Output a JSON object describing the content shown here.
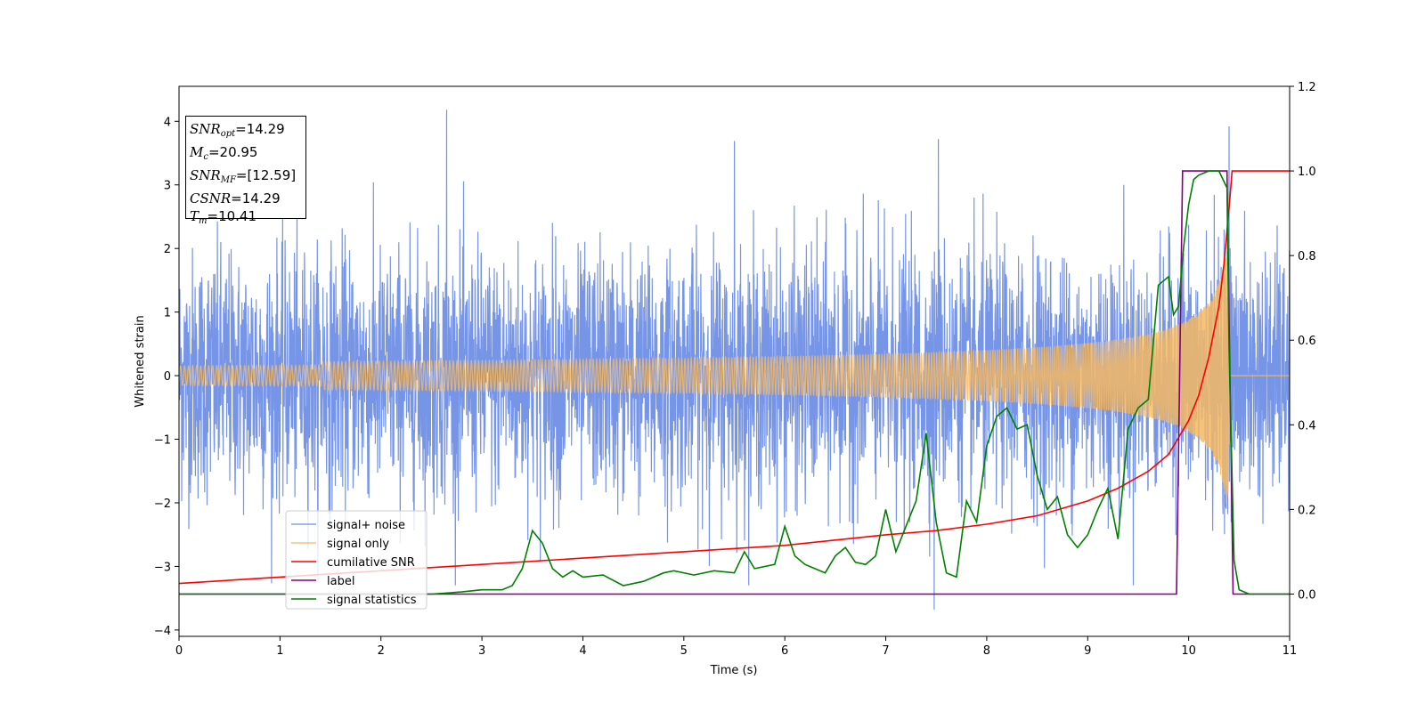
{
  "chart_data": {
    "type": "line",
    "xlabel": "Time (s)",
    "ylabel": "Whitened strain",
    "xlim": [
      0,
      11
    ],
    "ylim": [
      -4.1,
      4.55
    ],
    "y2lim": [
      -0.1,
      1.2
    ],
    "x_ticks": [
      "0",
      "1",
      "2",
      "3",
      "4",
      "5",
      "6",
      "7",
      "8",
      "9",
      "10",
      "11"
    ],
    "y_ticks": [
      "−4",
      "−3",
      "−2",
      "−1",
      "0",
      "1",
      "2",
      "3",
      "4"
    ],
    "y2_ticks": [
      "0.0",
      "0.2",
      "0.4",
      "0.6",
      "0.8",
      "1.0",
      "1.2"
    ],
    "grid": false,
    "legend_position": "lower-left",
    "info_box": {
      "snr_opt_sym": "SNR",
      "snr_opt_sub": "opt",
      "snr_opt_val": "=14.29",
      "mc_sym": "M",
      "mc_sub": "c",
      "mc_val": "=20.95",
      "snr_mf_sym": "SNR",
      "snr_mf_sub": "MF",
      "snr_mf_val": "=[12.59]",
      "csnr_sym": "CSNR",
      "csnr_val": "=14.29",
      "tm_sym": "T",
      "tm_sub": "m",
      "tm_val": "=10.41"
    },
    "series": [
      {
        "name": "signal+ noise",
        "color": "#6f8fe6",
        "axis": "left",
        "kind": "noise",
        "notable_spikes": [
          [
            2.65,
            4.18
          ],
          [
            10.4,
            3.92
          ],
          [
            7.52,
            3.72
          ],
          [
            7.48,
            -3.68
          ],
          [
            5.5,
            3.69
          ]
        ]
      },
      {
        "name": "signal only",
        "color": "#f5b862",
        "axis": "left",
        "kind": "chirp",
        "merger_time": 10.41,
        "peak_amplitude": 2.6
      },
      {
        "name": "cumilative SNR",
        "color": "#ff0000",
        "axis": "right",
        "x": [
          0,
          1,
          2,
          3,
          4,
          5,
          6,
          7,
          7.5,
          8,
          8.5,
          9,
          9.3,
          9.6,
          9.8,
          10.0,
          10.1,
          10.2,
          10.3,
          10.35,
          10.38,
          10.41,
          10.43,
          11
        ],
        "y": [
          0.025,
          0.04,
          0.055,
          0.07,
          0.085,
          0.1,
          0.115,
          0.14,
          0.15,
          0.165,
          0.185,
          0.22,
          0.25,
          0.29,
          0.33,
          0.41,
          0.47,
          0.56,
          0.68,
          0.78,
          0.86,
          0.94,
          1.0,
          1.0
        ]
      },
      {
        "name": "label",
        "color": "#800080",
        "axis": "right",
        "x": [
          0,
          9.88,
          9.94,
          10.38,
          10.44,
          11
        ],
        "y": [
          0.0,
          0.0,
          1.0,
          1.0,
          0.0,
          0.0
        ]
      },
      {
        "name": "signal statistics",
        "color": "#008000",
        "axis": "right",
        "x": [
          0,
          1,
          2,
          2.5,
          2.8,
          3.0,
          3.2,
          3.3,
          3.4,
          3.5,
          3.6,
          3.7,
          3.8,
          3.9,
          4.0,
          4.2,
          4.4,
          4.6,
          4.8,
          4.9,
          5.1,
          5.3,
          5.5,
          5.6,
          5.7,
          5.9,
          6.0,
          6.1,
          6.2,
          6.4,
          6.5,
          6.6,
          6.7,
          6.8,
          6.9,
          7.0,
          7.1,
          7.2,
          7.3,
          7.4,
          7.5,
          7.6,
          7.7,
          7.8,
          7.9,
          8.0,
          8.1,
          8.2,
          8.3,
          8.4,
          8.5,
          8.6,
          8.7,
          8.8,
          8.9,
          9.0,
          9.1,
          9.2,
          9.3,
          9.4,
          9.5,
          9.6,
          9.7,
          9.8,
          9.85,
          9.9,
          9.95,
          10.0,
          10.05,
          10.1,
          10.2,
          10.3,
          10.38,
          10.4,
          10.45,
          10.5,
          10.6,
          11
        ],
        "y": [
          0.0,
          0.0,
          0.0,
          0.0,
          0.005,
          0.01,
          0.01,
          0.02,
          0.06,
          0.15,
          0.12,
          0.06,
          0.04,
          0.055,
          0.04,
          0.045,
          0.02,
          0.03,
          0.05,
          0.055,
          0.045,
          0.055,
          0.05,
          0.1,
          0.06,
          0.07,
          0.16,
          0.09,
          0.07,
          0.05,
          0.09,
          0.11,
          0.075,
          0.07,
          0.09,
          0.2,
          0.1,
          0.16,
          0.22,
          0.38,
          0.17,
          0.05,
          0.04,
          0.22,
          0.17,
          0.35,
          0.42,
          0.44,
          0.39,
          0.4,
          0.28,
          0.2,
          0.23,
          0.14,
          0.11,
          0.14,
          0.2,
          0.25,
          0.13,
          0.39,
          0.44,
          0.46,
          0.73,
          0.75,
          0.66,
          0.68,
          0.82,
          0.92,
          0.98,
          0.99,
          1.0,
          1.0,
          0.96,
          0.58,
          0.08,
          0.01,
          0.0,
          0.0
        ]
      }
    ]
  }
}
